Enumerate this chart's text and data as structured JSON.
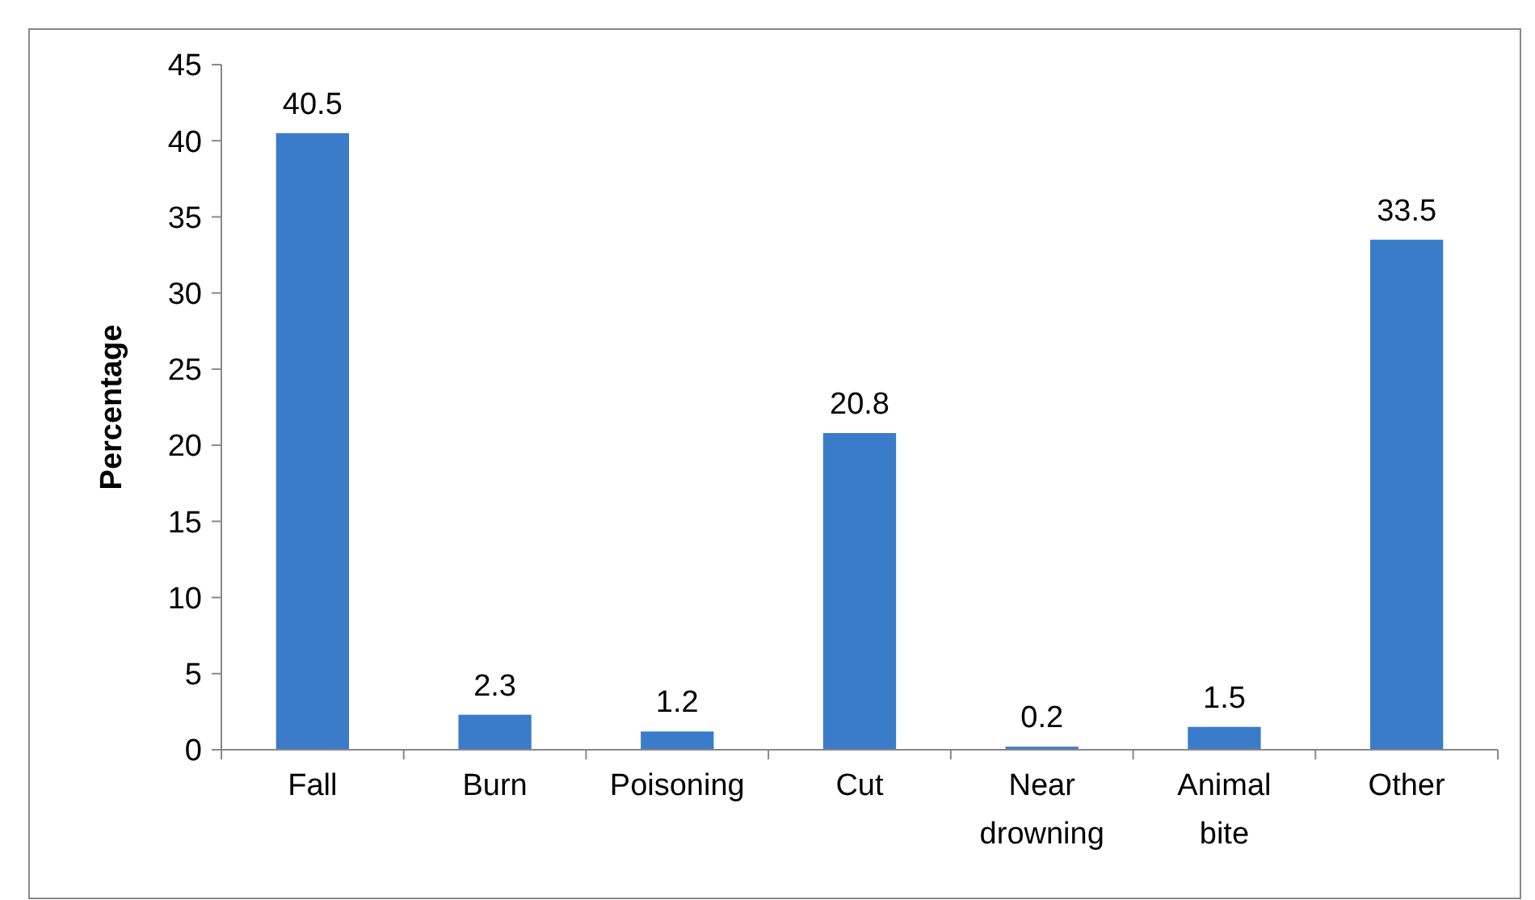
{
  "chart_data": {
    "type": "bar",
    "ylabel": "Percentage",
    "categories": [
      "Fall",
      "Burn",
      "Poisoning",
      "Cut",
      "Near drowning",
      "Animal bite",
      "Other"
    ],
    "values": [
      40.5,
      2.3,
      1.2,
      20.8,
      0.2,
      1.5,
      33.5
    ],
    "color": "#3a7cc9",
    "ylim": [
      0,
      45
    ],
    "yticks": [
      0,
      5,
      10,
      15,
      20,
      25,
      30,
      35,
      40,
      45
    ],
    "data_labels": true,
    "grid": false
  }
}
